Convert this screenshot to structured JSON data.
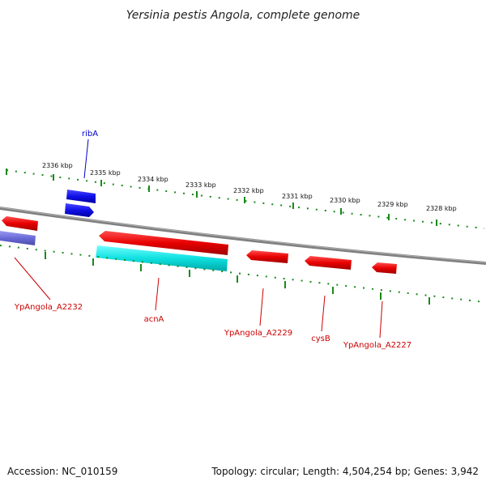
{
  "title": "Yersinia pestis Angola, complete genome",
  "footer": {
    "accession": "Accession: NC_010159",
    "summary": "Topology: circular; Length: 4,504,254 bp; Genes: 3,942"
  },
  "ticks": [
    "2336 kbp",
    "2335 kbp",
    "2334 kbp",
    "2333 kbp",
    "2332 kbp",
    "2331 kbp",
    "2330 kbp",
    "2329 kbp",
    "2328 kbp"
  ],
  "genes": {
    "ribA": "ribA",
    "ypa2232": "YpAngola_A2232",
    "acnA": "acnA",
    "ypa2229": "YpAngola_A2229",
    "cysB": "cysB",
    "ypa2227": "YpAngola_A2227"
  },
  "colors": {
    "forward_gene": "#1515e0",
    "reverse_gene": "#e00000",
    "cyan_feature": "#10d8d8",
    "purple_feature": "#6a6ad8",
    "backbone": "#808080",
    "tick": "#1a8a1a",
    "label_red": "#cc0000",
    "label_blue": "#0000cc"
  }
}
